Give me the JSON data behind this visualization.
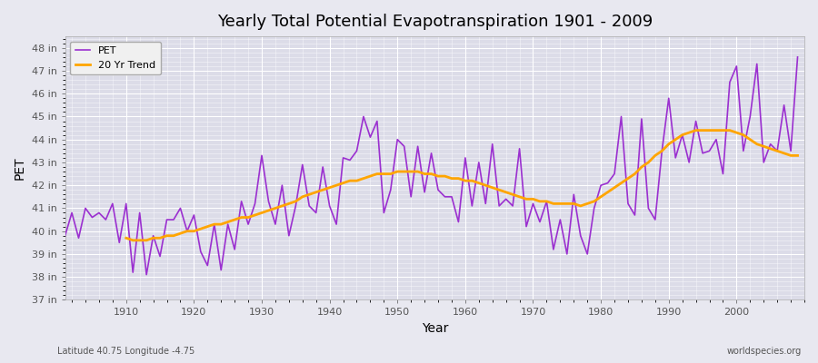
{
  "title": "Yearly Total Potential Evapotranspiration 1901 - 2009",
  "xlabel": "Year",
  "ylabel": "PET",
  "subtitle": "Latitude 40.75 Longitude -4.75",
  "watermark": "worldspecies.org",
  "ylim": [
    37,
    48.5
  ],
  "yticks": [
    37,
    38,
    39,
    40,
    41,
    42,
    43,
    44,
    45,
    46,
    47,
    48
  ],
  "ytick_labels": [
    "37 in",
    "38 in",
    "39 in",
    "40 in",
    "41 in",
    "42 in",
    "43 in",
    "44 in",
    "45 in",
    "46 in",
    "47 in",
    "48 in"
  ],
  "xlim": [
    1901,
    2010
  ],
  "xticks": [
    1910,
    1920,
    1930,
    1940,
    1950,
    1960,
    1970,
    1980,
    1990,
    2000
  ],
  "pet_color": "#9B30D0",
  "trend_color": "#FFA500",
  "bg_color": "#E8E8F0",
  "plot_bg_color": "#DCDCE8",
  "grid_color": "#FFFFFF",
  "legend_bg": "#F0F0F0",
  "years": [
    1901,
    1902,
    1903,
    1904,
    1905,
    1906,
    1907,
    1908,
    1909,
    1910,
    1911,
    1912,
    1913,
    1914,
    1915,
    1916,
    1917,
    1918,
    1919,
    1920,
    1921,
    1922,
    1923,
    1924,
    1925,
    1926,
    1927,
    1928,
    1929,
    1930,
    1931,
    1932,
    1933,
    1934,
    1935,
    1936,
    1937,
    1938,
    1939,
    1940,
    1941,
    1942,
    1943,
    1944,
    1945,
    1946,
    1947,
    1948,
    1949,
    1950,
    1951,
    1952,
    1953,
    1954,
    1955,
    1956,
    1957,
    1958,
    1959,
    1960,
    1961,
    1962,
    1963,
    1964,
    1965,
    1966,
    1967,
    1968,
    1969,
    1970,
    1971,
    1972,
    1973,
    1974,
    1975,
    1976,
    1977,
    1978,
    1979,
    1980,
    1981,
    1982,
    1983,
    1984,
    1985,
    1986,
    1987,
    1988,
    1989,
    1990,
    1991,
    1992,
    1993,
    1994,
    1995,
    1996,
    1997,
    1998,
    1999,
    2000,
    2001,
    2002,
    2003,
    2004,
    2005,
    2006,
    2007,
    2008,
    2009
  ],
  "pet_values": [
    39.8,
    40.8,
    39.7,
    41.0,
    40.6,
    40.8,
    40.5,
    41.2,
    39.5,
    41.2,
    38.2,
    40.8,
    38.1,
    39.8,
    38.9,
    40.5,
    40.5,
    41.0,
    40.0,
    40.7,
    39.1,
    38.5,
    40.3,
    38.3,
    40.3,
    39.2,
    41.3,
    40.3,
    41.2,
    43.3,
    41.3,
    40.3,
    42.0,
    39.8,
    41.1,
    42.9,
    41.1,
    40.8,
    42.8,
    41.1,
    40.3,
    43.2,
    43.1,
    43.5,
    45.0,
    44.1,
    44.8,
    40.8,
    41.8,
    44.0,
    43.7,
    41.5,
    43.7,
    41.7,
    43.4,
    41.8,
    41.5,
    41.5,
    40.4,
    43.2,
    41.1,
    43.0,
    41.2,
    43.8,
    41.1,
    41.4,
    41.1,
    43.6,
    40.2,
    41.2,
    40.4,
    41.3,
    39.2,
    40.5,
    39.0,
    41.6,
    39.8,
    39.0,
    41.0,
    42.0,
    42.1,
    42.5,
    45.0,
    41.2,
    40.7,
    44.9,
    41.0,
    40.5,
    43.5,
    45.8,
    43.2,
    44.2,
    43.0,
    44.8,
    43.4,
    43.5,
    44.0,
    42.5,
    46.5,
    47.2,
    43.5,
    45.0,
    47.3,
    43.0,
    43.8,
    43.5,
    45.5,
    43.5,
    47.6
  ],
  "trend_years": [
    1910,
    1911,
    1912,
    1913,
    1914,
    1915,
    1916,
    1917,
    1918,
    1919,
    1920,
    1921,
    1922,
    1923,
    1924,
    1925,
    1926,
    1927,
    1928,
    1929,
    1930,
    1931,
    1932,
    1933,
    1934,
    1935,
    1936,
    1937,
    1938,
    1939,
    1940,
    1941,
    1942,
    1943,
    1944,
    1945,
    1946,
    1947,
    1948,
    1949,
    1950,
    1951,
    1952,
    1953,
    1954,
    1955,
    1956,
    1957,
    1958,
    1959,
    1960,
    1961,
    1962,
    1963,
    1964,
    1965,
    1966,
    1967,
    1968,
    1969,
    1970,
    1971,
    1972,
    1973,
    1974,
    1975,
    1976,
    1977,
    1978,
    1979,
    1980,
    1981,
    1982,
    1983,
    1984,
    1985,
    1986,
    1987,
    1988,
    1989,
    1990,
    1991,
    1992,
    1993,
    1994,
    1995,
    1996,
    1997,
    1998,
    1999,
    2000,
    2001,
    2002,
    2003,
    2004,
    2005,
    2006,
    2007,
    2008,
    2009
  ],
  "trend_values": [
    39.7,
    39.6,
    39.6,
    39.6,
    39.7,
    39.7,
    39.8,
    39.8,
    39.9,
    40.0,
    40.0,
    40.1,
    40.2,
    40.3,
    40.3,
    40.4,
    40.5,
    40.6,
    40.6,
    40.7,
    40.8,
    40.9,
    41.0,
    41.1,
    41.2,
    41.3,
    41.5,
    41.6,
    41.7,
    41.8,
    41.9,
    42.0,
    42.1,
    42.2,
    42.2,
    42.3,
    42.4,
    42.5,
    42.5,
    42.5,
    42.6,
    42.6,
    42.6,
    42.6,
    42.5,
    42.5,
    42.4,
    42.4,
    42.3,
    42.3,
    42.2,
    42.2,
    42.1,
    42.0,
    41.9,
    41.8,
    41.7,
    41.6,
    41.5,
    41.4,
    41.4,
    41.3,
    41.3,
    41.2,
    41.2,
    41.2,
    41.2,
    41.1,
    41.2,
    41.3,
    41.5,
    41.7,
    41.9,
    42.1,
    42.3,
    42.5,
    42.8,
    43.0,
    43.3,
    43.5,
    43.8,
    44.0,
    44.2,
    44.3,
    44.4,
    44.4,
    44.4,
    44.4,
    44.4,
    44.4,
    44.3,
    44.2,
    44.0,
    43.8,
    43.7,
    43.6,
    43.5,
    43.4,
    43.3,
    43.3
  ]
}
